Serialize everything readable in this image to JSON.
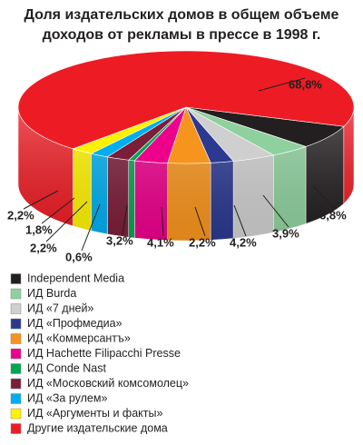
{
  "chart_data": {
    "type": "pie3d",
    "title": [
      "Доля издательских домов в общем объеме",
      "доходов от рекламы в прессе в 1998 г."
    ],
    "series": [
      {
        "name": "Independent Media",
        "color": "#231f20",
        "values": [
          6.8
        ],
        "value_labels": [
          "6,8%"
        ]
      },
      {
        "name": "ИД Burda",
        "color": "#8fd19e",
        "values": [
          3.9
        ],
        "value_labels": [
          "3,9%"
        ]
      },
      {
        "name": "ИД «7 дней»",
        "color": "#cfcfcf",
        "values": [
          4.2
        ],
        "value_labels": [
          "4,2%"
        ]
      },
      {
        "name": "ИД «Профмедиа»",
        "color": "#2b3990",
        "values": [
          2.2
        ],
        "value_labels": [
          "2,2%"
        ]
      },
      {
        "name": "ИД «Коммерсантъ»",
        "color": "#f7941d",
        "values": [
          4.1
        ],
        "value_labels": [
          "4,1%"
        ]
      },
      {
        "name": "ИД Hachette Filipacchi Presse",
        "color": "#ec008c",
        "values": [
          3.2
        ],
        "value_labels": [
          "3,2%"
        ]
      },
      {
        "name": "ИД Conde Nast",
        "color": "#00a651",
        "values": [
          0.6
        ],
        "value_labels": [
          "0,6%"
        ]
      },
      {
        "name": "ИД «Московский комсомолец»",
        "color": "#7b1e3a",
        "values": [
          2.2
        ],
        "value_labels": [
          "2,2%"
        ]
      },
      {
        "name": "ИД «За рулем»",
        "color": "#00aeef",
        "values": [
          1.8
        ],
        "value_labels": [
          "1,8%"
        ]
      },
      {
        "name": "ИД «Аргументы и факты»",
        "color": "#fff200",
        "values": [
          2.2
        ],
        "value_labels": [
          "2,2%"
        ]
      },
      {
        "name": "Другие издательские дома",
        "color": "#ed1c24",
        "values": [
          68.8
        ],
        "value_labels": [
          "68,8%"
        ]
      }
    ]
  }
}
